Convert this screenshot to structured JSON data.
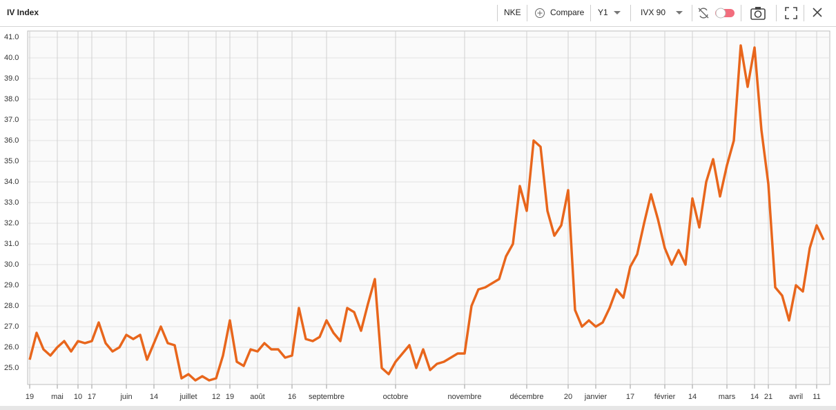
{
  "toolbar": {
    "title": "IV Index",
    "ticker": "NKE",
    "compare": "Compare",
    "period": "Y1",
    "measure": "IVX 90"
  },
  "chart_data": {
    "type": "line",
    "color": "#e8661c",
    "grid": true,
    "categories": [
      "19",
      null,
      null,
      null,
      "mai",
      null,
      null,
      "10",
      null,
      "17",
      null,
      null,
      null,
      null,
      "juin",
      null,
      null,
      null,
      "14",
      null,
      null,
      null,
      null,
      "juillet",
      null,
      null,
      null,
      "12",
      null,
      "19",
      null,
      null,
      null,
      "août",
      null,
      null,
      null,
      null,
      "16",
      null,
      null,
      null,
      null,
      "septembre",
      null,
      null,
      null,
      null,
      null,
      null,
      null,
      null,
      null,
      "octobre",
      null,
      null,
      null,
      null,
      null,
      null,
      null,
      null,
      null,
      "novembre",
      null,
      null,
      null,
      null,
      null,
      null,
      null,
      null,
      "décembre",
      null,
      null,
      null,
      null,
      null,
      "20",
      null,
      null,
      null,
      "janvier",
      null,
      null,
      null,
      null,
      "17",
      null,
      null,
      null,
      null,
      "février",
      null,
      null,
      null,
      "14",
      null,
      null,
      null,
      null,
      "mars",
      null,
      null,
      null,
      "14",
      null,
      "21",
      null,
      null,
      null,
      "avril",
      null,
      null,
      "11",
      null
    ],
    "values": [
      25.4,
      26.7,
      25.9,
      25.6,
      26.0,
      26.3,
      25.8,
      26.3,
      26.2,
      26.3,
      27.2,
      26.2,
      25.8,
      26.0,
      26.6,
      26.4,
      26.6,
      25.4,
      26.2,
      27.0,
      26.2,
      26.1,
      24.5,
      24.7,
      24.4,
      24.6,
      24.4,
      24.5,
      25.6,
      27.3,
      25.3,
      25.1,
      25.9,
      25.8,
      26.2,
      25.9,
      25.9,
      25.5,
      25.6,
      27.9,
      26.4,
      26.3,
      26.5,
      27.3,
      26.7,
      26.3,
      27.9,
      27.7,
      26.8,
      28.1,
      29.3,
      25.0,
      24.7,
      25.3,
      25.7,
      26.1,
      25.0,
      25.9,
      24.9,
      25.2,
      25.3,
      25.5,
      25.7,
      25.7,
      28.0,
      28.8,
      28.9,
      29.1,
      29.3,
      30.4,
      31.0,
      33.8,
      32.6,
      36.0,
      35.7,
      32.6,
      31.4,
      31.9,
      33.6,
      27.8,
      27.0,
      27.3,
      27.0,
      27.2,
      27.9,
      28.8,
      28.4,
      29.9,
      30.5,
      32.0,
      33.4,
      32.2,
      30.8,
      30.0,
      30.7,
      30.0,
      33.2,
      31.8,
      34.0,
      35.1,
      33.3,
      34.8,
      36.0,
      40.6,
      38.6,
      40.5,
      36.5,
      33.9,
      28.9,
      28.5,
      27.3,
      29.0,
      28.7,
      30.8,
      31.9,
      31.2
    ],
    "ylim": [
      24.2,
      41.3
    ],
    "yticks": [
      {
        "value": 25,
        "label": "25.0"
      },
      {
        "value": 26,
        "label": "26.0"
      },
      {
        "value": 27,
        "label": "27.0"
      },
      {
        "value": 28,
        "label": "28.0"
      },
      {
        "value": 29,
        "label": "29.0"
      },
      {
        "value": 30,
        "label": "30.0"
      },
      {
        "value": 31,
        "label": "31.0"
      },
      {
        "value": 32,
        "label": "32.0"
      },
      {
        "value": 33,
        "label": "33.0"
      },
      {
        "value": 34,
        "label": "34.0"
      },
      {
        "value": 35,
        "label": "35.0"
      },
      {
        "value": 36,
        "label": "36.0"
      },
      {
        "value": 37,
        "label": "37.0"
      },
      {
        "value": 38,
        "label": "38.0"
      },
      {
        "value": 39,
        "label": "39.0"
      },
      {
        "value": 40,
        "label": "40.0"
      },
      {
        "value": 41,
        "label": "41.0"
      }
    ]
  }
}
